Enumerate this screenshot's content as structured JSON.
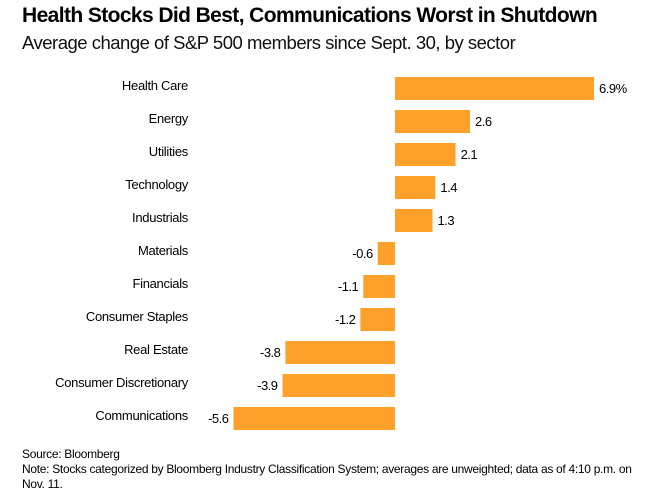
{
  "chart_data": {
    "type": "bar",
    "orientation": "horizontal",
    "title": "Health Stocks Did Best, Communications Worst in Shutdown",
    "subtitle": "Average change of S&P 500 members since Sept. 30, by sector",
    "xlabel": "",
    "ylabel": "",
    "unit_suffix_first_label": "%",
    "categories": [
      "Health Care",
      "Energy",
      "Utilities",
      "Technology",
      "Industrials",
      "Materials",
      "Financials",
      "Consumer Staples",
      "Real Estate",
      "Consumer Discretionary",
      "Communications"
    ],
    "values": [
      6.9,
      2.6,
      2.1,
      1.4,
      1.3,
      -0.6,
      -1.1,
      -1.2,
      -3.8,
      -3.9,
      -5.6
    ],
    "value_labels": [
      "6.9%",
      "2.6",
      "2.1",
      "1.4",
      "1.3",
      "-0.6",
      "-1.1",
      "-1.2",
      "-3.8",
      "-3.9",
      "-5.6"
    ],
    "xlim": [
      -5.6,
      6.9
    ],
    "grid": false,
    "legend": "none",
    "bar_color": "#FFA02A"
  },
  "footer": {
    "source": "Source: Bloomberg",
    "note": "Note: Stocks categorized by Bloomberg Industry Classification System; averages are unweighted; data as of 4:10 p.m. on Nov. 11."
  }
}
